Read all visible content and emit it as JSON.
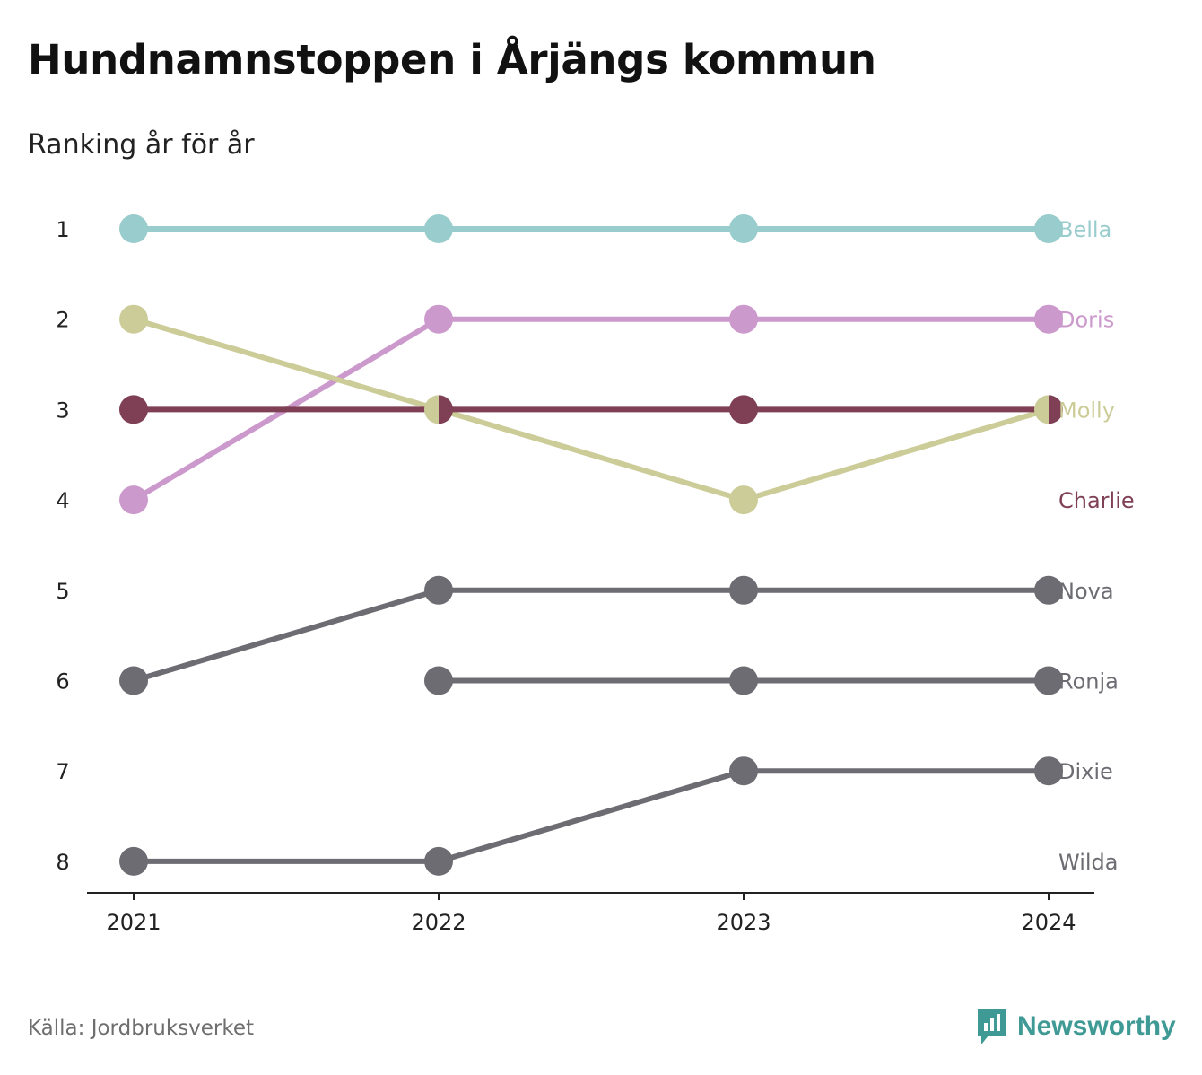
{
  "header": {
    "title": "Hundnamnstoppen i Årjängs kommun",
    "subtitle": "Ranking år för år"
  },
  "footer": {
    "source": "Källa: Jordbruksverket",
    "brand": "Newsworthy",
    "brand_color": "#3f9a95"
  },
  "chart_data": {
    "type": "line",
    "subtype": "bump",
    "x": [
      "2021",
      "2022",
      "2023",
      "2024"
    ],
    "y_ticks": [
      "1",
      "2",
      "3",
      "4",
      "5",
      "6",
      "7",
      "8"
    ],
    "ylim": [
      1,
      8
    ],
    "y_reversed": true,
    "grid": false,
    "legend": "direct labels at right end",
    "series": [
      {
        "name": "Bella",
        "values": [
          1,
          1,
          1,
          1
        ],
        "color": "#99cccc"
      },
      {
        "name": "Doris",
        "values": [
          4,
          2,
          2,
          2
        ],
        "color": "#cc99cc"
      },
      {
        "name": "Molly",
        "values": [
          2,
          3,
          4,
          3
        ],
        "color": "#cccc99"
      },
      {
        "name": "Charlie",
        "values": [
          3,
          3,
          3,
          3
        ],
        "color": "#7f3f54"
      },
      {
        "name": "Nova",
        "values": [
          6,
          5,
          5,
          5
        ],
        "color": "#6d6c73"
      },
      {
        "name": "Ronja",
        "values": [
          null,
          6,
          6,
          6
        ],
        "color": "#6d6c73"
      },
      {
        "name": "Dixie",
        "values": [
          8,
          8,
          7,
          7
        ],
        "color": "#6d6c73"
      },
      {
        "name": "Wilda",
        "values": [
          null,
          null,
          null,
          null
        ],
        "color": "#6d6c73"
      }
    ]
  }
}
